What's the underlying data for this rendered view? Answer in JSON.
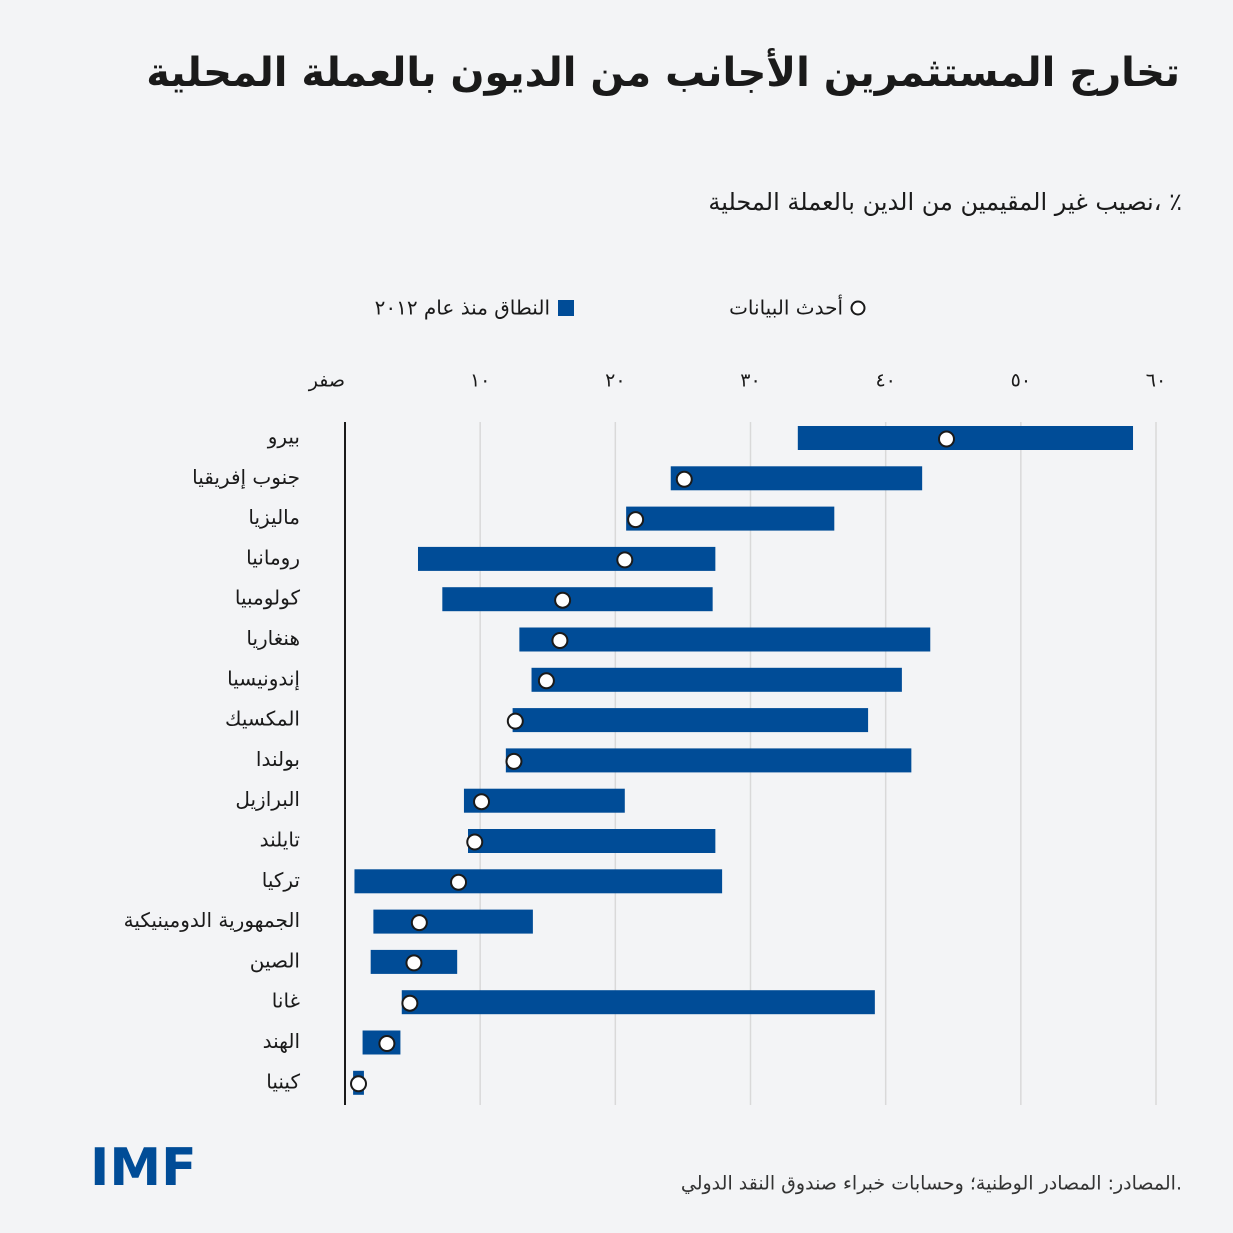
{
  "chart_data": {
    "type": "range",
    "title": "تخارج المستثمرين الأجانب من الديون بالعملة المحلية",
    "subtitle": "نصيب غير المقيمين من الدين بالعملة المحلية، ٪",
    "categories": [
      "بيرو",
      "جنوب إفريقيا",
      "ماليزيا",
      "رومانيا",
      "كولومبيا",
      "هنغاريا",
      "إندونيسيا",
      "المكسيك",
      "بولندا",
      "البرازيل",
      "تايلند",
      "تركيا",
      "الجمهورية الدومينيكية",
      "الصين",
      "غانا",
      "الهند",
      "كينيا"
    ],
    "series": [
      {
        "name": "النطاق منذ عام ٢٠١٢",
        "color": "#004c97",
        "low": [
          33.5,
          24.1,
          20.8,
          5.4,
          7.2,
          12.9,
          13.8,
          12.4,
          11.9,
          8.8,
          9.1,
          0.7,
          2.1,
          1.9,
          4.2,
          1.3,
          0.6
        ],
        "high": [
          58.3,
          42.7,
          36.2,
          27.4,
          27.2,
          43.3,
          41.2,
          38.7,
          41.9,
          20.7,
          27.4,
          27.9,
          13.9,
          8.3,
          39.2,
          4.1,
          1.4
        ]
      },
      {
        "name": "أحدث البيانات",
        "color": "#ffffff",
        "values": [
          44.5,
          25.1,
          21.5,
          20.7,
          16.1,
          15.9,
          14.9,
          12.6,
          12.5,
          10.1,
          9.6,
          8.4,
          5.5,
          5.1,
          4.8,
          3.1,
          1.0
        ]
      }
    ],
    "xlim": [
      0,
      60
    ],
    "xticks": [
      {
        "value": 0,
        "label": "صفر"
      },
      {
        "value": 10,
        "label": "١٠"
      },
      {
        "value": 20,
        "label": "٢٠"
      },
      {
        "value": 30,
        "label": "٣٠"
      },
      {
        "value": 40,
        "label": "٤٠"
      },
      {
        "value": 50,
        "label": "٥٠"
      },
      {
        "value": 60,
        "label": "٦٠"
      }
    ],
    "grid": true,
    "source": "المصادر: المصادر الوطنية؛ وحسابات خبراء صندوق النقد الدولي.",
    "logo": "IMF"
  }
}
